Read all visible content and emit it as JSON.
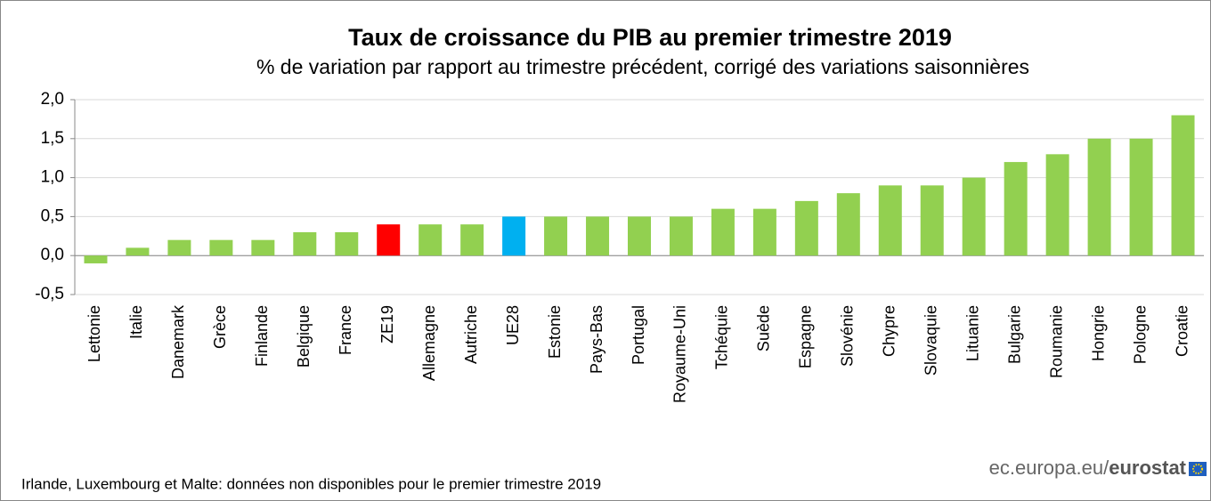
{
  "chart_data": {
    "type": "bar",
    "title": "Taux de croissance du PIB au premier trimestre 2019",
    "subtitle": "% de variation par rapport au trimestre précédent, corrigé des variations saisonnières",
    "categories": [
      "Lettonie",
      "Italie",
      "Danemark",
      "Grèce",
      "Finlande",
      "Belgique",
      "France",
      "ZE19",
      "Allemagne",
      "Autriche",
      "UE28",
      "Estonie",
      "Pays-Bas",
      "Portugal",
      "Royaume-Uni",
      "Tchéquie",
      "Suède",
      "Espagne",
      "Slovénie",
      "Chypre",
      "Slovaquie",
      "Lituanie",
      "Bulgarie",
      "Roumanie",
      "Hongrie",
      "Pologne",
      "Croatie"
    ],
    "values": [
      -0.1,
      0.1,
      0.2,
      0.2,
      0.2,
      0.3,
      0.3,
      0.4,
      0.4,
      0.4,
      0.5,
      0.5,
      0.5,
      0.5,
      0.5,
      0.6,
      0.6,
      0.7,
      0.8,
      0.9,
      0.9,
      1.0,
      1.2,
      1.3,
      1.5,
      1.5,
      1.8
    ],
    "colors": [
      "#92d050",
      "#92d050",
      "#92d050",
      "#92d050",
      "#92d050",
      "#92d050",
      "#92d050",
      "#ff0000",
      "#92d050",
      "#92d050",
      "#00b0f0",
      "#92d050",
      "#92d050",
      "#92d050",
      "#92d050",
      "#92d050",
      "#92d050",
      "#92d050",
      "#92d050",
      "#92d050",
      "#92d050",
      "#92d050",
      "#92d050",
      "#92d050",
      "#92d050",
      "#92d050",
      "#92d050"
    ],
    "ylim": [
      -0.5,
      2.0
    ],
    "yticks": [
      {
        "value": -0.5,
        "label": "-0,5"
      },
      {
        "value": 0,
        "label": "0,0"
      },
      {
        "value": 0.5,
        "label": "0,5"
      },
      {
        "value": 1,
        "label": "1,0"
      },
      {
        "value": 1.5,
        "label": "1,5"
      },
      {
        "value": 2,
        "label": "2,0"
      }
    ],
    "grid": true,
    "footnote": "Irlande, Luxembourg et Malte: données non disponibles pour le premier trimestre 2019",
    "source": [
      "ec.europa.eu/",
      "eurostat"
    ]
  }
}
